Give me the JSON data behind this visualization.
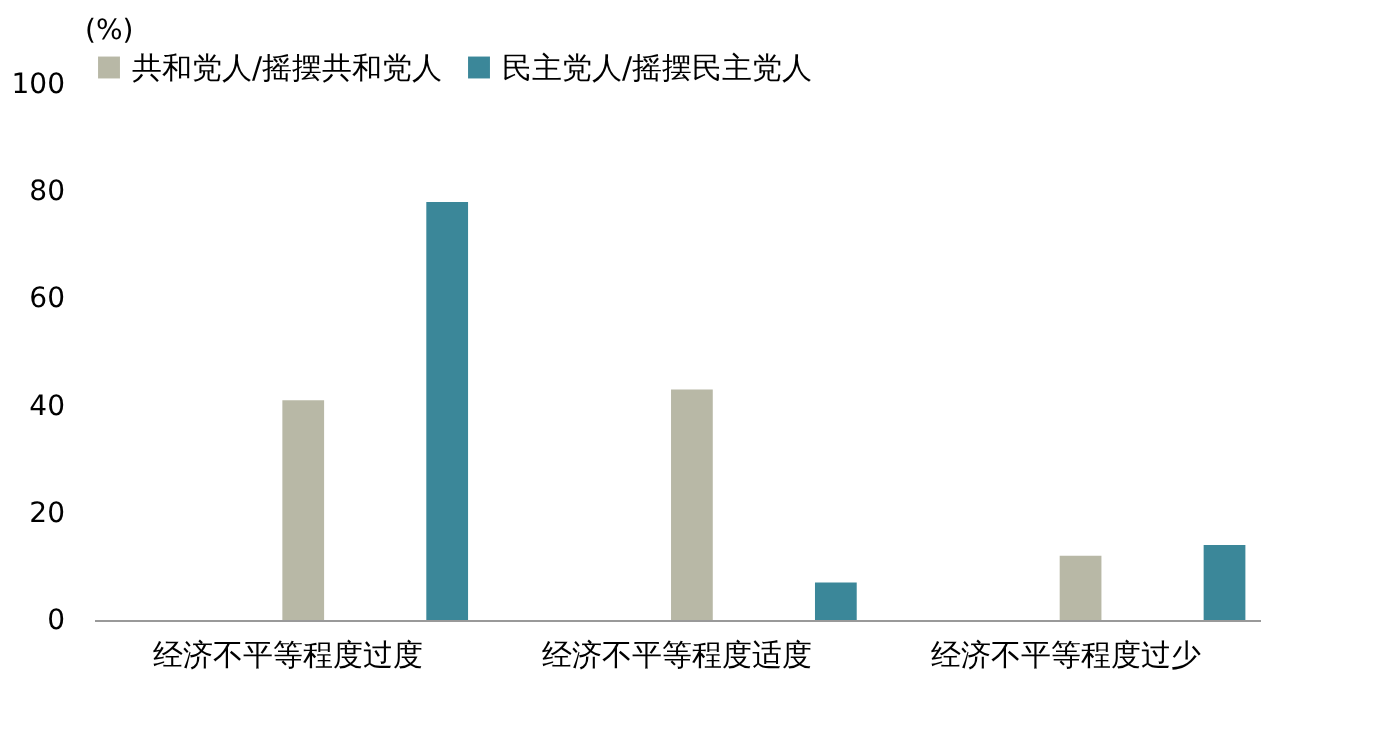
{
  "chart_data": {
    "type": "bar",
    "ylabel": "(%)",
    "categories": [
      "经济不平等程度过度",
      "经济不平等程度适度",
      "经济不平等程度过少"
    ],
    "series": [
      {
        "name": "共和党人/摇摆共和党人",
        "color": "#b8b8a6",
        "values": [
          41,
          43,
          12
        ]
      },
      {
        "name": "民主党人/摇摆民主党人",
        "color": "#3b8799",
        "values": [
          78,
          7,
          14
        ]
      }
    ],
    "ylim": [
      0,
      100
    ],
    "yticks": [
      0,
      20,
      40,
      60,
      80,
      100
    ],
    "grid": false,
    "legend": "top"
  }
}
